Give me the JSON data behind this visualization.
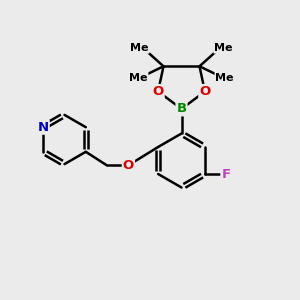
{
  "background_color": "#ebebeb",
  "bond_color": "#000000",
  "bond_width": 1.8,
  "atom_labels": {
    "N": {
      "color": "#0000cc",
      "fontsize": 9.5
    },
    "O": {
      "color": "#dd0000",
      "fontsize": 9.5
    },
    "B": {
      "color": "#008800",
      "fontsize": 9.5
    },
    "F": {
      "color": "#bb44bb",
      "fontsize": 9.5
    },
    "Me": {
      "color": "#000000",
      "fontsize": 8.0
    }
  },
  "figsize": [
    3.0,
    3.0
  ],
  "dpi": 100,
  "xlim": [
    0,
    10
  ],
  "ylim": [
    0,
    10
  ]
}
